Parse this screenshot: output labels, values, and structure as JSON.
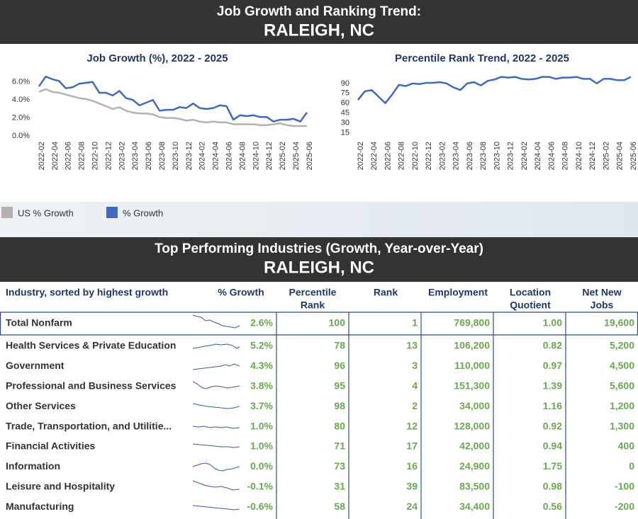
{
  "header": {
    "title": "Job Growth and Ranking Trend:",
    "city": "RALEIGH, NC"
  },
  "chart_data": [
    {
      "type": "line",
      "title": "Job Growth (%), 2022 - 2025",
      "categories": [
        "2022-02",
        null,
        "2022-04",
        null,
        "2022-06",
        null,
        "2022-08",
        null,
        "2022-10",
        null,
        "2022-12",
        null,
        "2023-02",
        null,
        "2023-04",
        null,
        "2023-06",
        null,
        "2023-08",
        null,
        "2023-10",
        null,
        "2023-12",
        null,
        "2024-02",
        null,
        "2024-04",
        null,
        "2024-06",
        null,
        "2024-08",
        null,
        "2024-10",
        null,
        "2024-12",
        null,
        "2025-02",
        null,
        "2025-04",
        null,
        "2025-06"
      ],
      "series": [
        {
          "name": "US % Growth",
          "color": "#b8b0ac",
          "values": [
            4.9,
            5.2,
            4.9,
            4.8,
            4.6,
            4.4,
            4.2,
            4.1,
            3.9,
            3.6,
            3.3,
            3.0,
            3.2,
            2.8,
            2.6,
            2.5,
            2.5,
            2.4,
            2.1,
            2.0,
            2.0,
            1.9,
            1.7,
            1.8,
            1.6,
            1.5,
            1.6,
            1.5,
            1.5,
            1.3,
            1.3,
            1.3,
            1.3,
            1.2,
            1.2,
            1.3,
            1.4,
            1.2,
            1.1,
            1.1,
            1.1
          ]
        },
        {
          "name": "% Growth",
          "color": "#4169bf",
          "values": [
            5.5,
            6.6,
            6.3,
            6.1,
            5.3,
            5.4,
            5.8,
            5.9,
            6.0,
            4.8,
            4.8,
            4.5,
            5.0,
            4.2,
            4.0,
            3.4,
            3.7,
            4.0,
            2.8,
            2.9,
            2.9,
            3.2,
            3.1,
            3.6,
            3.1,
            3.0,
            3.1,
            3.4,
            3.3,
            1.8,
            2.3,
            2.2,
            2.3,
            2.1,
            2.1,
            1.6,
            1.8,
            1.8,
            1.9,
            1.6,
            2.6
          ]
        }
      ],
      "ylim": [
        0,
        7
      ],
      "yticks": [
        {
          "value": 0,
          "label": "0.0%"
        },
        {
          "value": 2,
          "label": "2.0%"
        },
        {
          "value": 4,
          "label": "4.0%"
        },
        {
          "value": 6,
          "label": "6.0%"
        }
      ]
    },
    {
      "type": "line",
      "title": "Percentile Rank Trend, 2022 - 2025",
      "categories": [
        "2022-02",
        null,
        "2022-04",
        null,
        "2022-06",
        null,
        "2022-08",
        null,
        "2022-10",
        null,
        "2022-12",
        null,
        "2023-02",
        null,
        "2023-04",
        null,
        "2023-06",
        null,
        "2023-08",
        null,
        "2023-10",
        null,
        "2023-12",
        null,
        "2024-02",
        null,
        "2024-04",
        null,
        "2024-06",
        null,
        "2024-08",
        null,
        "2024-10",
        null,
        "2024-12",
        null,
        "2025-02",
        null,
        "2025-04",
        null,
        "2025-06"
      ],
      "series": [
        {
          "name": "Percentile Rank",
          "color": "#4169bf",
          "values": [
            65,
            78,
            80,
            70,
            60,
            73,
            88,
            86,
            90,
            89,
            91,
            91,
            92,
            90,
            84,
            80,
            90,
            92,
            87,
            94,
            96,
            100,
            99,
            100,
            97,
            96,
            97,
            100,
            100,
            97,
            99,
            99,
            100,
            97,
            97,
            90,
            97,
            97,
            95,
            95,
            100
          ]
        }
      ],
      "ylim": [
        10,
        105
      ],
      "yticks": [
        15,
        30,
        45,
        60,
        75,
        90
      ]
    }
  ],
  "header2": {
    "title": "Top Performing Industries (Growth, Year-over-Year)",
    "city": "RALEIGH, NC"
  },
  "table": {
    "columns": [
      [
        "Industry, sorted by highest growth"
      ],
      [
        "% Growth"
      ],
      [
        "Percentile",
        "Rank"
      ],
      [
        "Rank"
      ],
      [
        "Employment"
      ],
      [
        "Location",
        "Quotient"
      ],
      [
        "Net New",
        "Jobs"
      ]
    ],
    "rows": [
      [
        "Total Nonfarm",
        "2.6%",
        "100",
        "1",
        "769,800",
        "1.00",
        "19,600"
      ],
      [
        "Health Services & Private Education",
        "5.2%",
        "78",
        "13",
        "106,200",
        "0.82",
        "5,200"
      ],
      [
        "Government",
        "4.3%",
        "96",
        "3",
        "110,000",
        "0.97",
        "4,500"
      ],
      [
        "Professional and Business Services",
        "3.8%",
        "95",
        "4",
        "151,300",
        "1.39",
        "5,600"
      ],
      [
        "Other Services",
        "3.7%",
        "98",
        "2",
        "34,000",
        "1.16",
        "1,200"
      ],
      [
        "Trade, Transportation, and Utilitie...",
        "1.0%",
        "80",
        "12",
        "128,000",
        "0.92",
        "1,300"
      ],
      [
        "Financial Activities",
        "1.0%",
        "71",
        "17",
        "42,000",
        "0.94",
        "400"
      ],
      [
        "Information",
        "0.0%",
        "73",
        "16",
        "24,900",
        "1.75",
        "0"
      ],
      [
        "Leisure and Hospitality",
        "-0.1%",
        "31",
        "39",
        "83,500",
        "0.98",
        "-100"
      ],
      [
        "Manufacturing",
        "-0.6%",
        "58",
        "24",
        "34,400",
        "0.56",
        "-200"
      ]
    ]
  }
}
